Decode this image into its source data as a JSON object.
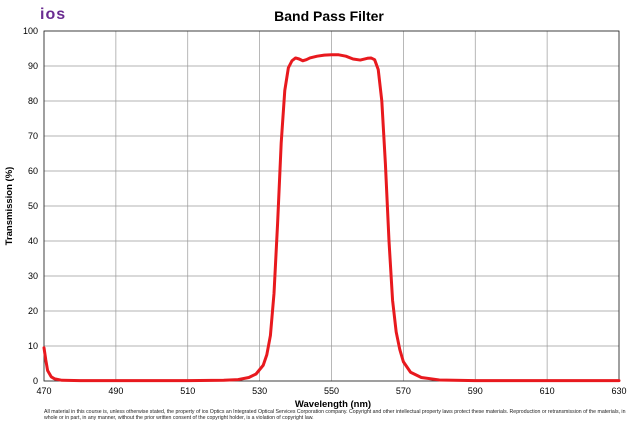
{
  "logo": {
    "text": "ios",
    "color": "#6a2c91"
  },
  "footer": "All material in this course is, unless otherwise stated, the property of ios Optics an Integrated Optical Services Corporation company. Copyright and other intellectual property laws protect these materials. Reproduction or retransmission of the materials, in whole or in part, in any manner, without the prior written consent of the copyright holder, is a violation of copyright law.",
  "chart_data": {
    "type": "line",
    "title": "Band Pass Filter",
    "xlabel": "Wavelength (nm)",
    "ylabel": "Transmission (%)",
    "xlim": [
      470,
      630
    ],
    "ylim": [
      0,
      100
    ],
    "xticks": [
      470,
      490,
      510,
      530,
      550,
      570,
      590,
      610,
      630
    ],
    "yticks": [
      0,
      10,
      20,
      30,
      40,
      50,
      60,
      70,
      80,
      90,
      100
    ],
    "grid": true,
    "line_color": "#e8191e",
    "series": [
      {
        "x": [
          470,
          470.5,
          471,
          472,
          473,
          475,
          480,
          490,
          500,
          510,
          520,
          524,
          527,
          529,
          531,
          532,
          533,
          534,
          535,
          536,
          537,
          538,
          539,
          540,
          541,
          542,
          543,
          544,
          546,
          548,
          550,
          552,
          554,
          556,
          558,
          560,
          561,
          562,
          563,
          564,
          565,
          566,
          567,
          568,
          569,
          570,
          572,
          575,
          580,
          590,
          600,
          610,
          620,
          630
        ],
        "y": [
          9.5,
          6.0,
          3.0,
          1.2,
          0.6,
          0.2,
          0.1,
          0.1,
          0.1,
          0.1,
          0.2,
          0.4,
          1.0,
          2.0,
          4.5,
          7.5,
          13.0,
          25.0,
          45.0,
          68.0,
          83.0,
          89.5,
          91.5,
          92.3,
          92.0,
          91.5,
          91.8,
          92.3,
          92.8,
          93.1,
          93.2,
          93.2,
          92.8,
          92.0,
          91.7,
          92.2,
          92.3,
          91.8,
          89.0,
          80.0,
          62.0,
          40.0,
          23.0,
          14.0,
          9.0,
          5.5,
          2.5,
          1.0,
          0.3,
          0.1,
          0.1,
          0.1,
          0.1,
          0.1
        ]
      }
    ]
  }
}
